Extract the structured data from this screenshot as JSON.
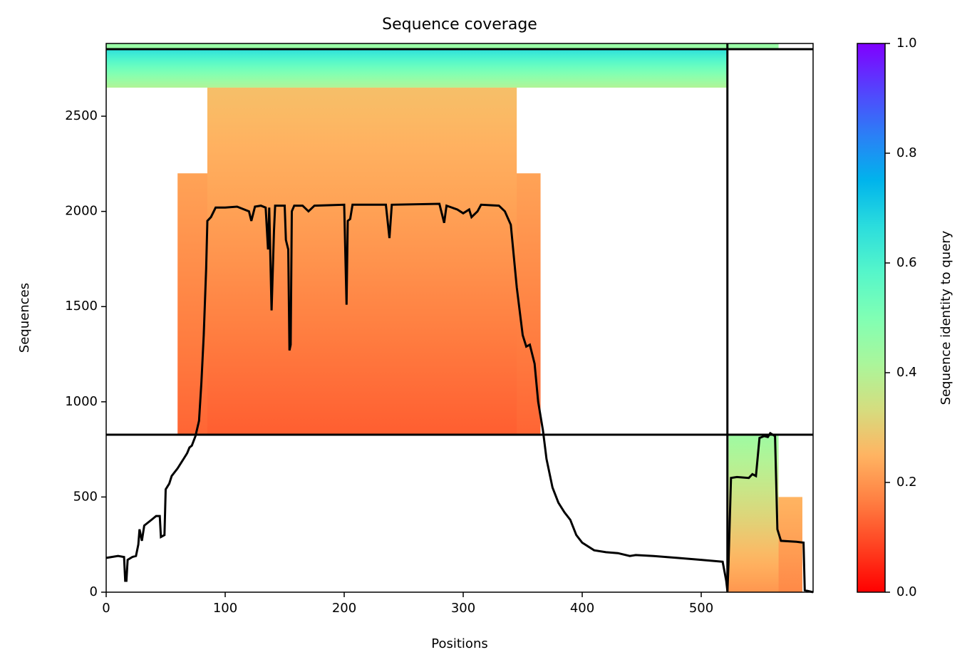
{
  "chart_data": {
    "type": "coverage",
    "title": "Sequence coverage",
    "x_label": "Positions",
    "y_label": "Sequences",
    "xlim": [
      0,
      594
    ],
    "ylim": [
      0,
      2882
    ],
    "xticks": [
      0,
      100,
      200,
      300,
      400,
      500
    ],
    "yticks": [
      0,
      500,
      1000,
      1500,
      2000,
      2500
    ],
    "colorbar": {
      "label": "Sequence identity to query",
      "clim": [
        0,
        1
      ],
      "ticks": [
        {
          "value": 0,
          "label": "0.0"
        },
        0.2,
        0.4,
        0.6,
        0.8,
        {
          "value": 1,
          "label": "1.0"
        }
      ]
    },
    "blocks": [
      {
        "x": [
          60,
          365
        ],
        "y": [
          828,
          2200
        ],
        "identity": [
          0.13,
          0.22
        ]
      },
      {
        "x": [
          85,
          345
        ],
        "y": [
          828,
          2650
        ],
        "identity": [
          0.12,
          0.27
        ]
      },
      {
        "x": [
          0,
          522
        ],
        "y": [
          2650,
          2852
        ],
        "identity": [
          0.4,
          0.66
        ]
      },
      {
        "x": [
          0,
          565
        ],
        "y": [
          2852,
          2882
        ],
        "identity": [
          0.45,
          0.45
        ]
      },
      {
        "x": [
          523,
          585
        ],
        "y": [
          0,
          500
        ],
        "identity": [
          0.18,
          0.25
        ]
      },
      {
        "x": [
          523,
          565
        ],
        "y": [
          0,
          828
        ],
        "identity": [
          0.2,
          0.44
        ]
      }
    ],
    "ref_hlines": [
      827,
      2852
    ],
    "ref_vlines": [
      522
    ],
    "line": {
      "color": "#000000",
      "x": [
        0,
        10,
        15,
        16,
        17,
        18,
        22,
        25,
        27,
        28,
        30,
        32,
        38,
        42,
        45,
        46,
        49,
        50,
        53,
        55,
        60,
        65,
        68,
        70,
        72,
        75,
        78,
        80,
        82,
        84,
        85,
        88,
        92,
        100,
        110,
        120,
        122,
        125,
        130,
        134,
        136,
        137,
        139,
        141,
        142,
        150,
        151,
        153,
        154,
        155,
        156,
        158,
        165,
        170,
        175,
        200,
        202,
        203,
        205,
        207,
        235,
        238,
        240,
        280,
        284,
        286,
        295,
        300,
        305,
        307,
        312,
        315,
        330,
        335,
        340,
        345,
        350,
        353,
        356,
        360,
        363,
        367,
        370,
        375,
        380,
        385,
        390,
        395,
        400,
        410,
        420,
        430,
        440,
        445,
        460,
        480,
        500,
        518,
        521,
        522,
        523,
        525,
        530,
        540,
        543,
        546,
        549,
        553,
        556,
        558,
        562,
        564,
        567,
        580,
        586,
        587,
        594
      ],
      "y": [
        180,
        190,
        185,
        60,
        60,
        170,
        185,
        190,
        250,
        330,
        270,
        350,
        380,
        400,
        400,
        290,
        300,
        540,
        570,
        610,
        650,
        700,
        730,
        760,
        770,
        820,
        900,
        1100,
        1350,
        1700,
        1950,
        1970,
        2020,
        2020,
        2025,
        2000,
        1950,
        2025,
        2030,
        2020,
        1800,
        2020,
        1480,
        1900,
        2030,
        2030,
        1850,
        1800,
        1270,
        1300,
        2000,
        2030,
        2030,
        2000,
        2030,
        2035,
        1510,
        1950,
        1960,
        2035,
        2035,
        1860,
        2035,
        2040,
        1940,
        2030,
        2010,
        1990,
        2010,
        1970,
        2000,
        2035,
        2030,
        2000,
        1930,
        1600,
        1350,
        1290,
        1300,
        1200,
        1000,
        850,
        700,
        550,
        470,
        420,
        380,
        300,
        260,
        220,
        210,
        205,
        190,
        195,
        190,
        180,
        170,
        160,
        60,
        5,
        160,
        600,
        605,
        600,
        620,
        610,
        810,
        820,
        815,
        835,
        820,
        330,
        270,
        265,
        260,
        10,
        0
      ]
    }
  }
}
